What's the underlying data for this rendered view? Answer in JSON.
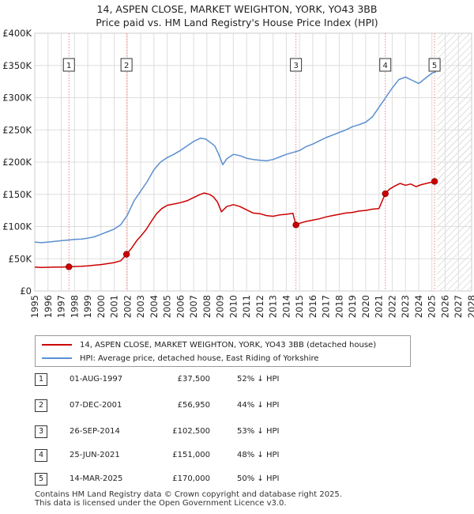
{
  "title_line1": "14, ASPEN CLOSE, MARKET WEIGHTON, YORK, YO43 3BB",
  "title_line2": "Price paid vs. HM Land Registry's House Price Index (HPI)",
  "colors": {
    "property": "#cc0000",
    "hpi": "#5b8fd0",
    "grid": "#dddddd",
    "marker_line": "#e88888",
    "label_border": "#333333",
    "hatch": "#c0c0c0"
  },
  "chart_data": {
    "type": "line",
    "x_unit": "year",
    "xlim": [
      1995,
      2028
    ],
    "ylim": [
      0,
      400000
    ],
    "x_ticks": [
      "1995",
      "1996",
      "1997",
      "1998",
      "1999",
      "2000",
      "2001",
      "2002",
      "2003",
      "2004",
      "2005",
      "2006",
      "2007",
      "2008",
      "2009",
      "2010",
      "2011",
      "2012",
      "2013",
      "2014",
      "2015",
      "2016",
      "2017",
      "2018",
      "2019",
      "2020",
      "2021",
      "2022",
      "2023",
      "2024",
      "2025",
      "2026",
      "2027",
      "2028"
    ],
    "y_ticks": [
      {
        "value": 0,
        "label": "£0"
      },
      {
        "value": 50000,
        "label": "£50K"
      },
      {
        "value": 100000,
        "label": "£100K"
      },
      {
        "value": 150000,
        "label": "£150K"
      },
      {
        "value": 200000,
        "label": "£200K"
      },
      {
        "value": 250000,
        "label": "£250K"
      },
      {
        "value": 300000,
        "label": "£300K"
      },
      {
        "value": 350000,
        "label": "£350K"
      },
      {
        "value": 400000,
        "label": "£400K"
      }
    ],
    "future_start": 2025.4,
    "series": [
      {
        "name": "property",
        "x": [
          1995.0,
          1995.5,
          1996.0,
          1996.5,
          1997.0,
          1997.58,
          1998.0,
          1998.5,
          1999.0,
          1999.5,
          2000.0,
          2000.5,
          2001.0,
          2001.5,
          2001.93,
          2002.3,
          2002.7,
          2003.0,
          2003.4,
          2003.8,
          2004.2,
          2004.6,
          2005.0,
          2005.5,
          2006.0,
          2006.5,
          2007.0,
          2007.5,
          2007.8,
          2008.2,
          2008.5,
          2008.8,
          2009.1,
          2009.5,
          2010.0,
          2010.5,
          2011.0,
          2011.5,
          2012.0,
          2012.5,
          2013.0,
          2013.5,
          2014.0,
          2014.5,
          2014.72,
          2015.0,
          2015.5,
          2016.0,
          2016.5,
          2017.0,
          2017.5,
          2018.0,
          2018.5,
          2019.0,
          2019.5,
          2020.0,
          2020.5,
          2021.0,
          2021.48,
          2021.8,
          2022.2,
          2022.6,
          2023.0,
          2023.4,
          2023.8,
          2024.2,
          2024.6,
          2025.2
        ],
        "y": [
          37000,
          36500,
          36800,
          37200,
          37000,
          37500,
          38000,
          38300,
          39000,
          40000,
          41000,
          42500,
          44000,
          47000,
          56950,
          66000,
          78000,
          85000,
          95000,
          108000,
          120000,
          128000,
          133000,
          135000,
          137000,
          140000,
          145000,
          150000,
          152000,
          150000,
          146000,
          138000,
          123000,
          131000,
          134000,
          131000,
          126000,
          121000,
          120000,
          117000,
          116000,
          118000,
          119000,
          120500,
          102500,
          105000,
          108000,
          110000,
          112000,
          115000,
          117000,
          119000,
          121000,
          122000,
          124000,
          125000,
          127000,
          128000,
          151000,
          158000,
          163000,
          167000,
          164000,
          166000,
          162000,
          165000,
          167000,
          170000
        ]
      },
      {
        "name": "hpi",
        "x": [
          1995.0,
          1995.5,
          1996.0,
          1996.5,
          1997.0,
          1997.5,
          1998.0,
          1998.5,
          1999.0,
          1999.5,
          2000.0,
          2000.5,
          2001.0,
          2001.5,
          2002.0,
          2002.5,
          2003.0,
          2003.5,
          2004.0,
          2004.5,
          2005.0,
          2005.5,
          2006.0,
          2006.5,
          2007.0,
          2007.5,
          2007.9,
          2008.3,
          2008.6,
          2008.9,
          2009.2,
          2009.5,
          2010.0,
          2010.5,
          2011.0,
          2011.5,
          2012.0,
          2012.5,
          2013.0,
          2013.5,
          2014.0,
          2014.5,
          2015.0,
          2015.5,
          2016.0,
          2016.5,
          2017.0,
          2017.5,
          2018.0,
          2018.5,
          2019.0,
          2019.5,
          2020.0,
          2020.5,
          2021.0,
          2021.5,
          2022.0,
          2022.5,
          2023.0,
          2023.5,
          2024.0,
          2024.5,
          2025.0,
          2025.3
        ],
        "y": [
          76000,
          75000,
          76000,
          77000,
          78000,
          79000,
          80000,
          80500,
          82000,
          84000,
          88000,
          92000,
          96000,
          103000,
          118000,
          140000,
          155000,
          170000,
          188000,
          200000,
          207000,
          212000,
          218000,
          225000,
          232000,
          237000,
          236000,
          230000,
          225000,
          212000,
          196000,
          205000,
          212000,
          210000,
          206000,
          204000,
          203000,
          202000,
          204000,
          208000,
          212000,
          215000,
          218000,
          224000,
          228000,
          233000,
          238000,
          242000,
          246000,
          250000,
          255000,
          258000,
          262000,
          270000,
          285000,
          300000,
          315000,
          328000,
          332000,
          327000,
          322000,
          330000,
          338000,
          340000
        ]
      }
    ],
    "transactions": [
      {
        "num": "1",
        "x": 1997.58,
        "price": 37500
      },
      {
        "num": "2",
        "x": 2001.93,
        "price": 56950
      },
      {
        "num": "3",
        "x": 2014.73,
        "price": 102500
      },
      {
        "num": "4",
        "x": 2021.48,
        "price": 151000
      },
      {
        "num": "5",
        "x": 2025.2,
        "price": 170000
      }
    ]
  },
  "legend": {
    "property_label": "14, ASPEN CLOSE, MARKET WEIGHTON, YORK, YO43 3BB (detached house)",
    "hpi_label": "HPI: Average price, detached house, East Riding of Yorkshire"
  },
  "table": [
    {
      "num": "1",
      "date": "01-AUG-1997",
      "price": "£37,500",
      "hpi": "52% ↓ HPI"
    },
    {
      "num": "2",
      "date": "07-DEC-2001",
      "price": "£56,950",
      "hpi": "44% ↓ HPI"
    },
    {
      "num": "3",
      "date": "26-SEP-2014",
      "price": "£102,500",
      "hpi": "53% ↓ HPI"
    },
    {
      "num": "4",
      "date": "25-JUN-2021",
      "price": "£151,000",
      "hpi": "48% ↓ HPI"
    },
    {
      "num": "5",
      "date": "14-MAR-2025",
      "price": "£170,000",
      "hpi": "50% ↓ HPI"
    }
  ],
  "footer_line1": "Contains HM Land Registry data © Crown copyright and database right 2025.",
  "footer_line2": "This data is licensed under the Open Government Licence v3.0."
}
